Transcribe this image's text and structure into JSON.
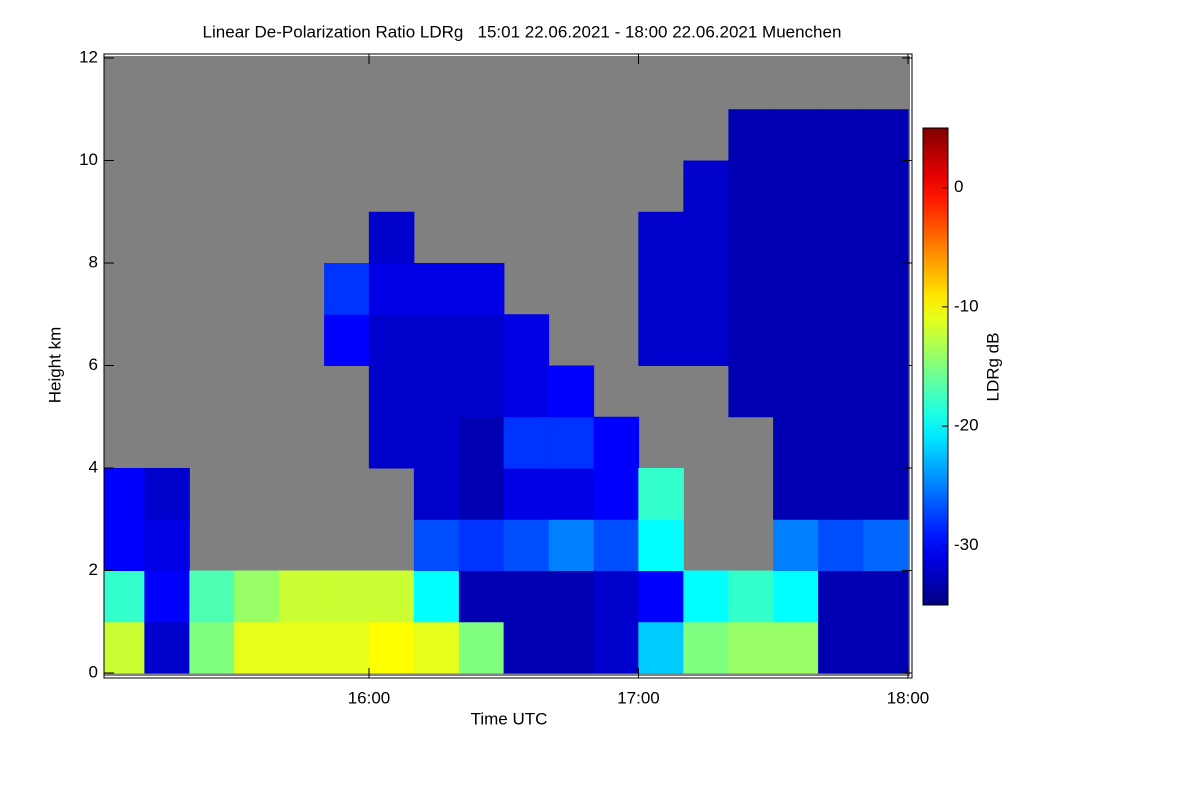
{
  "chart_data": {
    "type": "heatmap",
    "title": "Linear De-Polarization Ratio LDRg   15:01 22.06.2021 - 18:00 22.06.2021 Muenchen",
    "x_label": "Time UTC",
    "y_label": "Height km",
    "colorbar_label": "LDRg dB",
    "colormap": "jet",
    "missing_color": "#808080",
    "x": [
      15.083,
      15.25,
      15.417,
      15.583,
      15.75,
      15.917,
      16.083,
      16.25,
      16.417,
      16.583,
      16.75,
      16.917,
      17.083,
      17.25,
      17.417,
      17.583,
      17.75,
      17.917
    ],
    "y": [
      0.5,
      1.5,
      2.5,
      3.5,
      4.5,
      5.5,
      6.5,
      7.5,
      8.5,
      9.5,
      10.5,
      11.5
    ],
    "values": [
      [
        -12,
        -18,
        -30,
        -30,
        null,
        null,
        null,
        null,
        null,
        null,
        null,
        null
      ],
      [
        -32,
        -30,
        -31,
        -32,
        null,
        null,
        null,
        null,
        null,
        null,
        null,
        null
      ],
      [
        -15,
        -17,
        null,
        null,
        null,
        null,
        null,
        null,
        null,
        null,
        null,
        null
      ],
      [
        -11,
        -14,
        null,
        null,
        null,
        null,
        null,
        null,
        null,
        null,
        null,
        null
      ],
      [
        -11,
        -12,
        null,
        null,
        null,
        null,
        null,
        null,
        null,
        null,
        null,
        null
      ],
      [
        -11,
        -12,
        null,
        null,
        null,
        null,
        -30,
        -28,
        null,
        null,
        null,
        null
      ],
      [
        -10,
        -12,
        null,
        null,
        -32,
        -32,
        -32,
        -31,
        -32,
        null,
        null,
        null
      ],
      [
        -11,
        -20,
        -27,
        -32,
        -32,
        -32,
        -32,
        -31,
        null,
        null,
        null,
        null
      ],
      [
        -15,
        -33,
        -28,
        -33,
        -33,
        -32,
        -32,
        -31,
        null,
        null,
        null,
        null
      ],
      [
        -33,
        -33,
        -27,
        -31,
        -28,
        -31,
        -31,
        null,
        null,
        null,
        null,
        null
      ],
      [
        -33,
        -33,
        -25,
        -31,
        -28,
        -30,
        null,
        null,
        null,
        null,
        null,
        null
      ],
      [
        -32,
        -32,
        -27,
        -30,
        -30,
        null,
        null,
        null,
        null,
        null,
        null,
        null
      ],
      [
        -22,
        -30,
        -20,
        -18,
        null,
        null,
        -32,
        -32,
        -32,
        null,
        null,
        null
      ],
      [
        -15,
        -20,
        null,
        null,
        null,
        null,
        -32,
        -32,
        -32,
        -32,
        null,
        null
      ],
      [
        -14,
        -18,
        null,
        null,
        null,
        -33,
        -33,
        -33,
        -33,
        -33,
        -33,
        null
      ],
      [
        -14,
        -20,
        -25,
        -33,
        -33,
        -33,
        -33,
        -33,
        -33,
        -33,
        -33,
        null
      ],
      [
        -33,
        -33,
        -27,
        -33,
        -33,
        -33,
        -33,
        -33,
        -33,
        -33,
        -33,
        null
      ],
      [
        -33,
        -33,
        -26,
        -33,
        -33,
        -33,
        -33,
        -33,
        -33,
        -33,
        -33,
        null
      ]
    ],
    "xlim": [
      15.0167,
      18.0
    ],
    "xticks": [
      {
        "value": 16,
        "label": "16:00"
      },
      {
        "value": 17,
        "label": "17:00"
      },
      {
        "value": 18,
        "label": "18:00"
      }
    ],
    "ylim": [
      0,
      12
    ],
    "yticks": [
      0,
      2,
      4,
      6,
      8,
      10,
      12
    ],
    "zlim": [
      -35,
      5
    ],
    "zticks": [
      0,
      -10,
      -20,
      -30
    ]
  }
}
